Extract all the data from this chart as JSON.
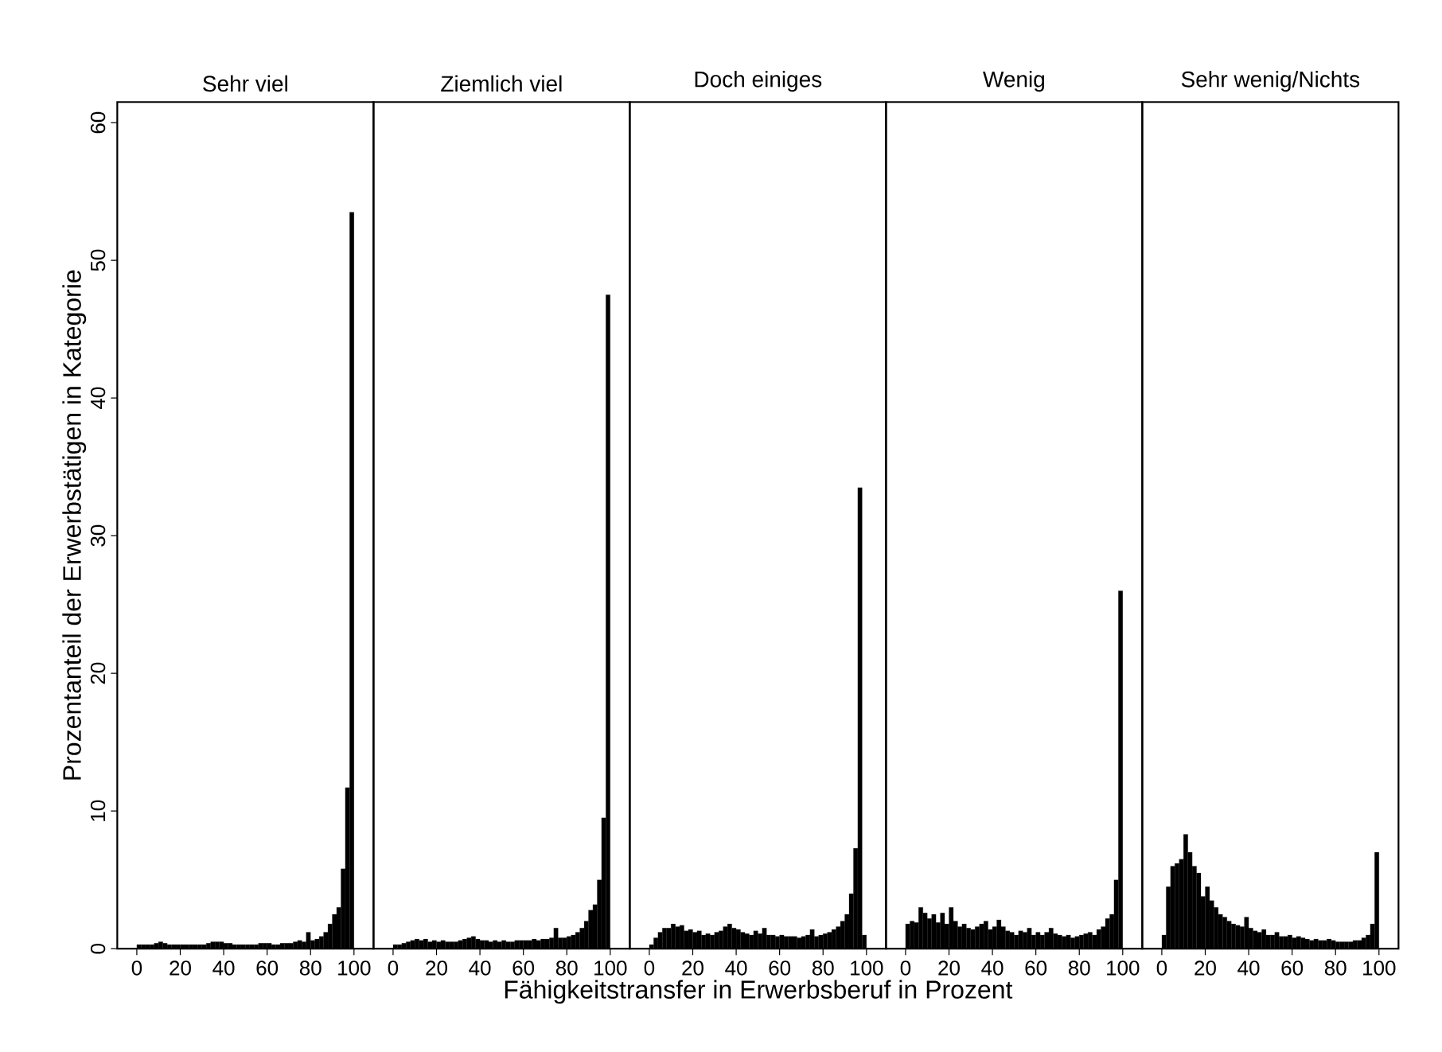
{
  "chart_data": [
    {
      "type": "histogram",
      "title": "Sehr viel",
      "ylabel": "Prozentanteil der Erwerbstätigen in Kategorie",
      "color": "#000000",
      "xlim": [
        -9,
        109
      ],
      "ylim": [
        0,
        61.5
      ],
      "xticks": [
        0,
        20,
        40,
        60,
        80,
        100
      ],
      "yticks": [
        0,
        10,
        20,
        30,
        40,
        50,
        60
      ],
      "grid": false,
      "bins": [
        0,
        2,
        4,
        6,
        8,
        10,
        12,
        14,
        16,
        18,
        20,
        22,
        24,
        26,
        28,
        30,
        32,
        34,
        36,
        38,
        40,
        42,
        44,
        46,
        48,
        50,
        52,
        54,
        56,
        58,
        60,
        62,
        64,
        66,
        68,
        70,
        72,
        74,
        76,
        78,
        80,
        82,
        84,
        86,
        88,
        90,
        92,
        94,
        96,
        98,
        100
      ],
      "values": [
        0.3,
        0.3,
        0.3,
        0.3,
        0.4,
        0.5,
        0.4,
        0.3,
        0.3,
        0.3,
        0.3,
        0.3,
        0.3,
        0.3,
        0.3,
        0.3,
        0.4,
        0.5,
        0.5,
        0.5,
        0.4,
        0.4,
        0.3,
        0.3,
        0.3,
        0.3,
        0.3,
        0.3,
        0.4,
        0.4,
        0.4,
        0.3,
        0.3,
        0.4,
        0.4,
        0.4,
        0.5,
        0.6,
        0.5,
        1.2,
        0.6,
        0.7,
        0.9,
        1.2,
        1.8,
        2.5,
        3.0,
        5.8,
        11.7,
        53.5
      ]
    },
    {
      "type": "histogram",
      "title": "Ziemlich viel",
      "color": "#000000",
      "xlim": [
        -9,
        109
      ],
      "ylim": [
        0,
        61.5
      ],
      "xticks": [
        0,
        20,
        40,
        60,
        80,
        100
      ],
      "yticks": [
        0,
        10,
        20,
        30,
        40,
        50,
        60
      ],
      "grid": false,
      "tick_labels": "x",
      "bins": [
        0,
        2,
        4,
        6,
        8,
        10,
        12,
        14,
        16,
        18,
        20,
        22,
        24,
        26,
        28,
        30,
        32,
        34,
        36,
        38,
        40,
        42,
        44,
        46,
        48,
        50,
        52,
        54,
        56,
        58,
        60,
        62,
        64,
        66,
        68,
        70,
        72,
        74,
        76,
        78,
        80,
        82,
        84,
        86,
        88,
        90,
        92,
        94,
        96,
        98,
        100
      ],
      "values": [
        0.3,
        0.3,
        0.4,
        0.5,
        0.6,
        0.7,
        0.6,
        0.7,
        0.5,
        0.6,
        0.5,
        0.6,
        0.5,
        0.5,
        0.5,
        0.6,
        0.7,
        0.8,
        0.9,
        0.7,
        0.6,
        0.6,
        0.5,
        0.6,
        0.5,
        0.6,
        0.5,
        0.5,
        0.6,
        0.6,
        0.6,
        0.6,
        0.7,
        0.6,
        0.7,
        0.7,
        0.8,
        1.5,
        0.8,
        0.8,
        0.9,
        1.0,
        1.2,
        1.5,
        2.0,
        2.8,
        3.2,
        5.0,
        9.5,
        47.5
      ]
    },
    {
      "type": "histogram",
      "title": "Doch einiges",
      "xlabel": "Fähigkeitstransfer in Erwerbsberuf in Prozent",
      "color": "#000000",
      "xlim": [
        -9,
        109
      ],
      "ylim": [
        0,
        61.5
      ],
      "xticks": [
        0,
        20,
        40,
        60,
        80,
        100
      ],
      "yticks": [
        0,
        10,
        20,
        30,
        40,
        50,
        60
      ],
      "grid": false,
      "tick_labels": "x",
      "bins": [
        0,
        2,
        4,
        6,
        8,
        10,
        12,
        14,
        16,
        18,
        20,
        22,
        24,
        26,
        28,
        30,
        32,
        34,
        36,
        38,
        40,
        42,
        44,
        46,
        48,
        50,
        52,
        54,
        56,
        58,
        60,
        62,
        64,
        66,
        68,
        70,
        72,
        74,
        76,
        78,
        80,
        82,
        84,
        86,
        88,
        90,
        92,
        94,
        96,
        98,
        100
      ],
      "values": [
        0.3,
        0.8,
        1.2,
        1.5,
        1.5,
        1.8,
        1.6,
        1.7,
        1.3,
        1.4,
        1.2,
        1.3,
        1.0,
        1.1,
        1.0,
        1.2,
        1.3,
        1.6,
        1.8,
        1.5,
        1.4,
        1.2,
        1.1,
        1.0,
        1.3,
        1.1,
        1.5,
        1.0,
        1.0,
        0.9,
        1.0,
        0.9,
        0.9,
        0.9,
        0.8,
        0.9,
        1.0,
        1.4,
        0.9,
        1.0,
        1.1,
        1.2,
        1.4,
        1.6,
        2.0,
        2.5,
        4.0,
        7.3,
        33.5,
        1.0
      ]
    },
    {
      "type": "histogram",
      "title": "Wenig",
      "color": "#000000",
      "xlim": [
        -9,
        109
      ],
      "ylim": [
        0,
        61.5
      ],
      "xticks": [
        0,
        20,
        40,
        60,
        80,
        100
      ],
      "yticks": [
        0,
        10,
        20,
        30,
        40,
        50,
        60
      ],
      "grid": false,
      "tick_labels": "x",
      "bins": [
        0,
        2,
        4,
        6,
        8,
        10,
        12,
        14,
        16,
        18,
        20,
        22,
        24,
        26,
        28,
        30,
        32,
        34,
        36,
        38,
        40,
        42,
        44,
        46,
        48,
        50,
        52,
        54,
        56,
        58,
        60,
        62,
        64,
        66,
        68,
        70,
        72,
        74,
        76,
        78,
        80,
        82,
        84,
        86,
        88,
        90,
        92,
        94,
        96,
        98,
        100
      ],
      "values": [
        1.8,
        2.0,
        1.9,
        3.0,
        2.6,
        2.2,
        2.5,
        1.9,
        2.6,
        1.8,
        3.0,
        2.0,
        1.6,
        1.8,
        1.5,
        1.4,
        1.6,
        1.8,
        2.0,
        1.4,
        1.6,
        2.1,
        1.6,
        1.3,
        1.2,
        1.0,
        1.3,
        1.2,
        1.5,
        1.0,
        1.2,
        1.0,
        1.2,
        1.5,
        1.1,
        1.0,
        0.9,
        1.0,
        0.8,
        0.9,
        1.0,
        1.1,
        1.2,
        1.0,
        1.4,
        1.6,
        2.2,
        2.5,
        5.0,
        26.0
      ]
    },
    {
      "type": "histogram",
      "title": "Sehr wenig/Nichts",
      "color": "#000000",
      "xlim": [
        -9,
        109
      ],
      "ylim": [
        0,
        61.5
      ],
      "xticks": [
        0,
        20,
        40,
        60,
        80,
        100
      ],
      "yticks": [
        0,
        10,
        20,
        30,
        40,
        50,
        60
      ],
      "grid": false,
      "tick_labels": "x",
      "bins": [
        0,
        2,
        4,
        6,
        8,
        10,
        12,
        14,
        16,
        18,
        20,
        22,
        24,
        26,
        28,
        30,
        32,
        34,
        36,
        38,
        40,
        42,
        44,
        46,
        48,
        50,
        52,
        54,
        56,
        58,
        60,
        62,
        64,
        66,
        68,
        70,
        72,
        74,
        76,
        78,
        80,
        82,
        84,
        86,
        88,
        90,
        92,
        94,
        96,
        98,
        100
      ],
      "values": [
        1.0,
        4.5,
        6.0,
        6.2,
        6.5,
        8.3,
        7.0,
        6.0,
        5.5,
        3.8,
        4.5,
        3.5,
        3.0,
        2.5,
        2.3,
        2.0,
        1.8,
        1.7,
        1.6,
        2.3,
        1.5,
        1.3,
        1.2,
        1.4,
        1.0,
        1.0,
        1.2,
        0.9,
        0.9,
        1.0,
        0.8,
        0.9,
        0.8,
        0.7,
        0.6,
        0.7,
        0.6,
        0.6,
        0.7,
        0.6,
        0.5,
        0.5,
        0.5,
        0.5,
        0.6,
        0.6,
        0.8,
        1.0,
        1.8,
        7.0
      ]
    }
  ]
}
